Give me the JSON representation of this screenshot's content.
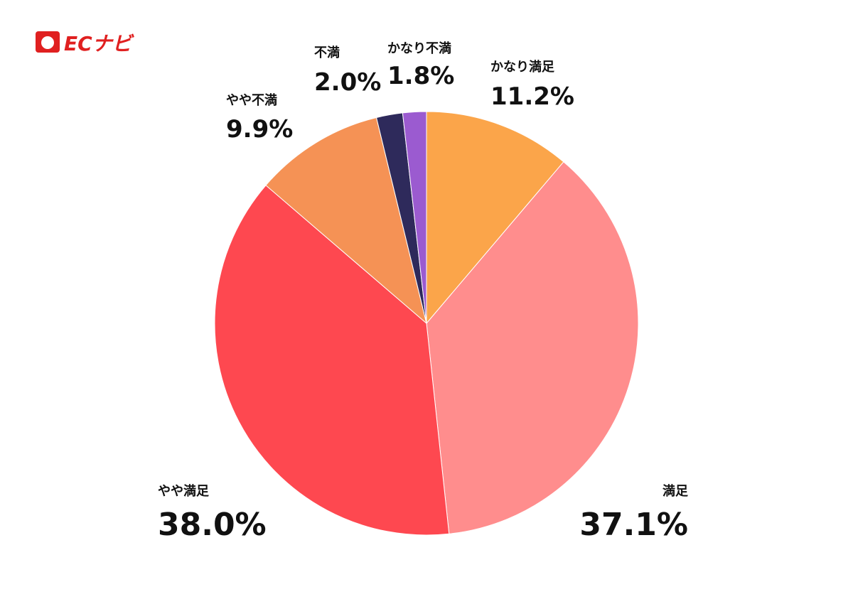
{
  "brand": "ECナビ",
  "chart_data": {
    "type": "pie",
    "categories": [
      "かなり満足",
      "満足",
      "やや満足",
      "やや不満",
      "不満",
      "かなり不満"
    ],
    "values": [
      11.2,
      37.1,
      38.0,
      9.9,
      2.0,
      1.8
    ],
    "value_labels": [
      "11.2%",
      "37.1%",
      "38.0%",
      "9.9%",
      "2.0%",
      "1.8%"
    ],
    "colors": [
      "#fba54a",
      "#ff8d8d",
      "#fe4850",
      "#f59255",
      "#2e2a5b",
      "#9b5bd0"
    ]
  }
}
